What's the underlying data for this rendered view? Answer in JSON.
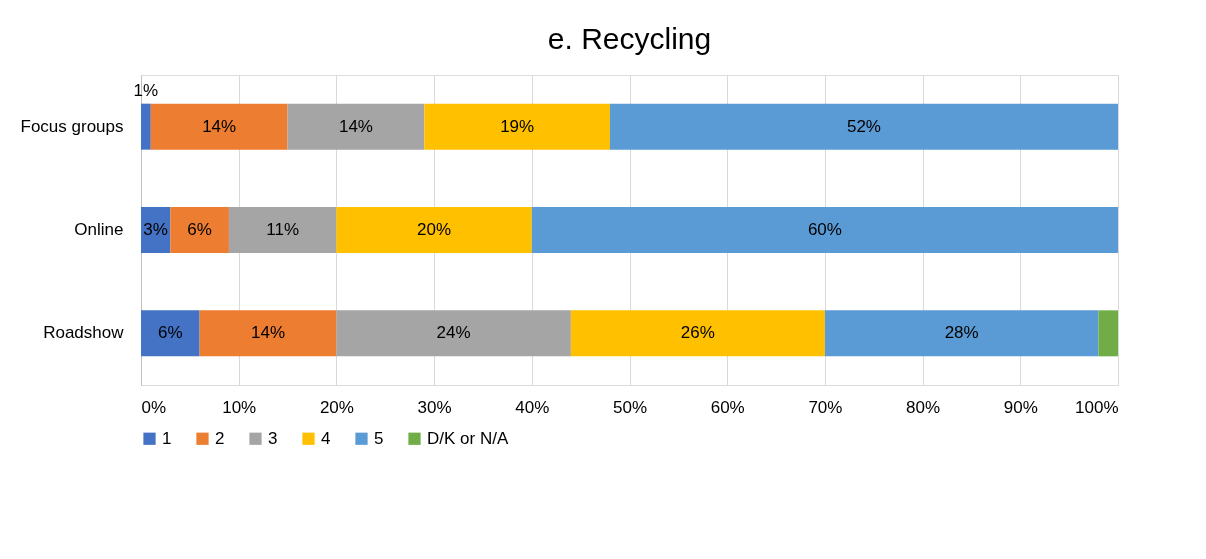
{
  "chart_data": {
    "type": "bar",
    "orientation": "horizontal",
    "stacked": true,
    "title": "e. Recycling",
    "categories": [
      "Focus groups",
      "Online",
      "Roadshow"
    ],
    "series": [
      {
        "name": "1",
        "color": "#4472c4",
        "values": [
          1,
          3,
          6
        ],
        "value_labels": [
          "1%",
          "3%",
          "6%"
        ]
      },
      {
        "name": "2",
        "color": "#ed7d31",
        "values": [
          14,
          6,
          14
        ],
        "value_labels": [
          "14%",
          "6%",
          "14%"
        ]
      },
      {
        "name": "3",
        "color": "#a5a5a5",
        "values": [
          14,
          11,
          24
        ],
        "value_labels": [
          "14%",
          "11%",
          "24%"
        ]
      },
      {
        "name": "4",
        "color": "#ffc000",
        "values": [
          19,
          20,
          26
        ],
        "value_labels": [
          "19%",
          "20%",
          "26%"
        ]
      },
      {
        "name": "5",
        "color": "#5b9bd5",
        "values": [
          52,
          60,
          28
        ],
        "value_labels": [
          "52%",
          "60%",
          "28%"
        ]
      },
      {
        "name": "D/K or N/A",
        "color": "#70ad47",
        "values": [
          0,
          0,
          2
        ],
        "value_labels": [
          null,
          null,
          null
        ]
      }
    ],
    "xlim": [
      0,
      100
    ],
    "xticks": [
      {
        "value": 0,
        "label": "0%"
      },
      {
        "value": 10,
        "label": "10%"
      },
      {
        "value": 20,
        "label": "20%"
      },
      {
        "value": 30,
        "label": "30%"
      },
      {
        "value": 40,
        "label": "40%"
      },
      {
        "value": 50,
        "label": "50%"
      },
      {
        "value": 60,
        "label": "60%"
      },
      {
        "value": 70,
        "label": "70%"
      },
      {
        "value": 80,
        "label": "80%"
      },
      {
        "value": 90,
        "label": "90%"
      },
      {
        "value": 100,
        "label": "100%"
      }
    ],
    "grid": "x",
    "legend": "bottom"
  }
}
